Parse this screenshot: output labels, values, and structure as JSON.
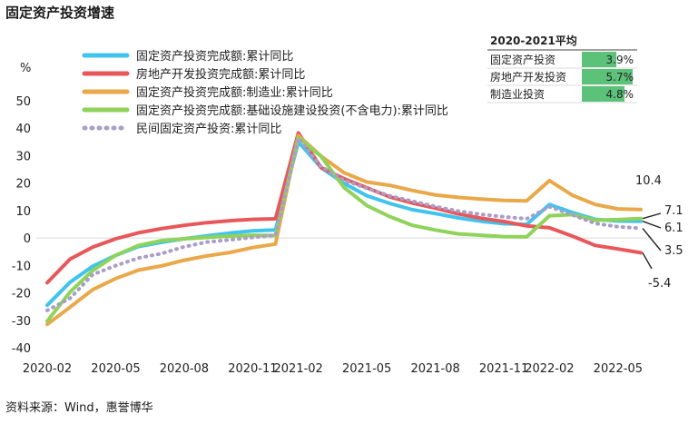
{
  "title": "固定资产投资增速",
  "source": "资料来源：Wind，惠誉博华",
  "chart_data": {
    "type": "line",
    "ylabel": "%",
    "ylim": [
      -40,
      50
    ],
    "yticks": [
      50,
      40,
      30,
      20,
      10,
      0,
      -10,
      -20,
      -30,
      -40
    ],
    "x": [
      "2020-02",
      "2020-03",
      "2020-04",
      "2020-05",
      "2020-06",
      "2020-07",
      "2020-08",
      "2020-09",
      "2020-10",
      "2020-11",
      "2020-12",
      "2021-02",
      "2021-03",
      "2021-04",
      "2021-05",
      "2021-06",
      "2021-07",
      "2021-08",
      "2021-09",
      "2021-10",
      "2021-11",
      "2021-12",
      "2022-02",
      "2022-03",
      "2022-04",
      "2022-05",
      "2022-06"
    ],
    "xticks": [
      "2020-02",
      "2020-05",
      "2020-08",
      "2020-11",
      "2021-02",
      "2021-05",
      "2021-08",
      "2021-11",
      "2022-02",
      "2022-05"
    ],
    "legend_position": "top-left",
    "series": [
      {
        "name": "固定资产投资完成额:累计同比",
        "color": "#40c4ee",
        "dash": false,
        "values": [
          -24.5,
          -16.1,
          -10.3,
          -6.3,
          -3.1,
          -1.6,
          -0.3,
          0.8,
          1.8,
          2.6,
          2.9,
          35.0,
          25.6,
          19.9,
          15.4,
          12.6,
          10.3,
          8.9,
          7.3,
          6.1,
          5.2,
          4.9,
          12.2,
          9.3,
          6.8,
          6.2,
          6.1
        ]
      },
      {
        "name": "房地产开发投资完成额:累计同比",
        "color": "#e8575a",
        "dash": false,
        "values": [
          -16.3,
          -7.7,
          -3.3,
          -0.3,
          1.9,
          3.4,
          4.6,
          5.6,
          6.3,
          6.8,
          7.0,
          38.3,
          25.6,
          21.6,
          18.3,
          15.0,
          12.7,
          10.9,
          8.8,
          7.2,
          6.0,
          4.4,
          3.7,
          0.7,
          -2.7,
          -4.0,
          -5.4
        ]
      },
      {
        "name": "固定资产投资完成额:制造业:累计同比",
        "color": "#e9a84a",
        "dash": false,
        "values": [
          -31.5,
          -25.2,
          -18.8,
          -14.8,
          -11.7,
          -10.2,
          -8.1,
          -6.5,
          -5.3,
          -3.5,
          -2.2,
          37.3,
          29.8,
          23.8,
          20.4,
          19.2,
          17.3,
          15.7,
          14.8,
          14.2,
          13.7,
          13.5,
          20.9,
          15.6,
          12.2,
          10.6,
          10.4
        ]
      },
      {
        "name": "固定资产投资完成额:基础设施建设投资(不含电力):累计同比",
        "color": "#8fd35a",
        "dash": false,
        "values": [
          -30.3,
          -19.7,
          -11.8,
          -6.3,
          -2.7,
          -1.0,
          -0.3,
          0.2,
          0.7,
          1.0,
          0.9,
          36.6,
          29.7,
          18.4,
          11.8,
          7.8,
          4.6,
          2.9,
          1.5,
          1.0,
          0.5,
          0.4,
          8.1,
          8.5,
          6.5,
          6.7,
          7.1
        ]
      },
      {
        "name": "民间固定资产投资:累计同比",
        "color": "#a99ec9",
        "dash": true,
        "values": [
          -26.4,
          -22.0,
          -13.3,
          -10.1,
          -7.3,
          -5.7,
          -3.2,
          -1.5,
          -0.7,
          0.2,
          1.0,
          36.4,
          26.0,
          21.0,
          18.1,
          15.4,
          13.4,
          11.5,
          9.8,
          8.6,
          7.7,
          7.0,
          11.4,
          8.4,
          5.3,
          4.1,
          3.5
        ]
      }
    ],
    "callouts": [
      "10.4",
      "7.1",
      "6.1",
      "3.5",
      "-5.4"
    ],
    "table": {
      "title": "2020-2021平均",
      "rows": [
        {
          "label": "固定资产投资",
          "value": "3.9%",
          "fill": 0.68
        },
        {
          "label": "房地产开发投资",
          "value": "5.7%",
          "fill": 1.0
        },
        {
          "label": "制造业投资",
          "value": "4.8%",
          "fill": 0.84
        }
      ],
      "bar_color": "#5cc27a"
    }
  }
}
